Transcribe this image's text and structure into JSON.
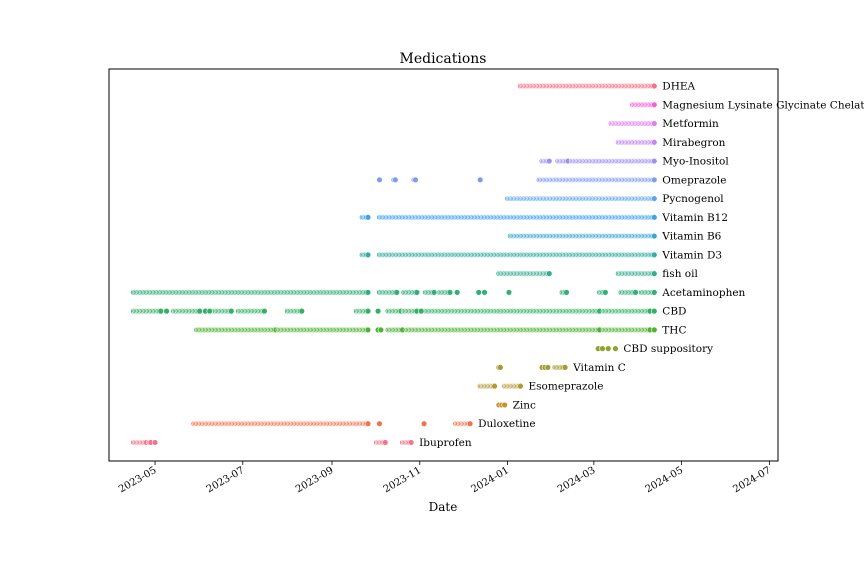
{
  "chart_data": {
    "type": "scatter",
    "title": "Medications",
    "xlabel": "Date",
    "ylabel": "",
    "x_axis": "date",
    "xlim": [
      "2023-03-30",
      "2024-07-07"
    ],
    "xtick_labels": [
      "2023-05",
      "2023-07",
      "2023-09",
      "2023-11",
      "2024-01",
      "2024-03",
      "2024-05",
      "2024-07"
    ],
    "xtick_dates": [
      "2023-05-01",
      "2023-07-01",
      "2023-09-01",
      "2023-11-01",
      "2024-01-01",
      "2024-03-01",
      "2024-05-01",
      "2024-07-01"
    ],
    "series": [
      {
        "name": "DHEA",
        "color": "#f77189",
        "ranges": [
          [
            "2024-01-10",
            "2024-04-12"
          ]
        ]
      },
      {
        "name": "Magnesium Lysinate Glycinate Chelat",
        "color": "#f564d4",
        "ranges": [
          [
            "2024-03-28",
            "2024-04-12"
          ]
        ]
      },
      {
        "name": "Metformin",
        "color": "#e27ef0",
        "ranges": [
          [
            "2024-03-13",
            "2024-04-12"
          ]
        ]
      },
      {
        "name": "Mirabegron",
        "color": "#c285f4",
        "ranges": [
          [
            "2024-03-18",
            "2024-04-12"
          ]
        ]
      },
      {
        "name": "Myo-Inositol",
        "color": "#a18ef4",
        "ranges": [
          [
            "2024-01-25",
            "2024-01-30"
          ],
          [
            "2024-02-05",
            "2024-02-12"
          ],
          [
            "2024-02-15",
            "2024-04-12"
          ]
        ]
      },
      {
        "name": "Omeprazole",
        "color": "#7d9cf0",
        "points": [
          "2023-10-04",
          "2023-10-14",
          "2023-10-15",
          "2023-10-28",
          "2023-10-29",
          "2023-12-13"
        ],
        "ranges": [
          [
            "2024-01-23",
            "2024-04-12"
          ]
        ]
      },
      {
        "name": "Pycnogenol",
        "color": "#5aa7e8",
        "ranges": [
          [
            "2024-01-01",
            "2024-04-12"
          ]
        ]
      },
      {
        "name": "Vitamin B12",
        "color": "#3ba3ec",
        "ranges": [
          [
            "2023-09-22",
            "2023-09-26"
          ],
          [
            "2023-10-04",
            "2024-04-12"
          ]
        ]
      },
      {
        "name": "Vitamin B6",
        "color": "#39a7d0",
        "ranges": [
          [
            "2024-01-03",
            "2024-04-12"
          ]
        ]
      },
      {
        "name": "Vitamin D3",
        "color": "#36ada4",
        "ranges": [
          [
            "2023-09-22",
            "2023-09-26"
          ],
          [
            "2023-10-04",
            "2024-04-12"
          ]
        ]
      },
      {
        "name": "fish oil",
        "color": "#34ae8e",
        "ranges": [
          [
            "2023-12-26",
            "2024-01-30"
          ],
          [
            "2024-03-18",
            "2024-04-12"
          ]
        ]
      },
      {
        "name": "Acetaminophen",
        "color": "#33b07a",
        "ranges": [
          [
            "2023-04-16",
            "2023-09-26"
          ],
          [
            "2023-10-04",
            "2023-10-16"
          ],
          [
            "2023-10-21",
            "2023-10-30"
          ],
          [
            "2023-11-05",
            "2023-11-11"
          ],
          [
            "2023-11-15",
            "2023-11-22"
          ],
          [
            "2024-02-08",
            "2024-02-11"
          ],
          [
            "2024-03-05",
            "2024-03-09"
          ],
          [
            "2024-03-20",
            "2024-03-30"
          ],
          [
            "2024-04-03",
            "2024-04-12"
          ]
        ],
        "points": [
          "2023-11-27",
          "2023-12-12",
          "2023-12-16",
          "2024-01-02"
        ]
      },
      {
        "name": "CBD",
        "color": "#32b166",
        "ranges": [
          [
            "2023-04-16",
            "2023-05-05"
          ],
          [
            "2023-05-14",
            "2023-06-01"
          ],
          [
            "2023-06-11",
            "2023-06-23"
          ],
          [
            "2023-06-28",
            "2023-07-16"
          ],
          [
            "2023-08-01",
            "2023-08-11"
          ],
          [
            "2023-09-18",
            "2023-09-26"
          ],
          [
            "2023-10-10",
            "2023-10-19"
          ],
          [
            "2023-10-21",
            "2023-10-30"
          ],
          [
            "2023-11-05",
            "2024-03-05"
          ],
          [
            "2024-03-08",
            "2024-04-09"
          ]
        ],
        "points": [
          "2023-05-09",
          "2023-06-05",
          "2023-06-08",
          "2023-10-03",
          "2023-11-02",
          "2024-04-12"
        ]
      },
      {
        "name": "THC",
        "color": "#4fb432",
        "ranges": [
          [
            "2023-05-30",
            "2023-07-24"
          ],
          [
            "2023-07-26",
            "2023-09-26"
          ],
          [
            "2023-10-10",
            "2023-10-20"
          ],
          [
            "2023-10-23",
            "2024-03-05"
          ],
          [
            "2024-03-08",
            "2024-04-09"
          ]
        ],
        "points": [
          "2023-10-03",
          "2023-10-05",
          "2024-04-12"
        ]
      },
      {
        "name": "CBD suppository",
        "color": "#8ea332",
        "points": [
          "2024-03-04",
          "2024-03-07",
          "2024-03-11",
          "2024-03-16"
        ]
      },
      {
        "name": "Vitamin C",
        "color": "#a39c31",
        "points": [
          "2023-12-26",
          "2023-12-27",
          "2024-01-25",
          "2024-01-27",
          "2024-01-29"
        ],
        "ranges": [
          [
            "2024-02-03",
            "2024-02-10"
          ]
        ]
      },
      {
        "name": "Esomeprazole",
        "color": "#b39930",
        "ranges": [
          [
            "2023-12-13",
            "2023-12-23"
          ],
          [
            "2023-12-30",
            "2024-01-10"
          ]
        ]
      },
      {
        "name": "Zinc",
        "color": "#c4932f",
        "points": [
          "2023-12-26",
          "2023-12-28",
          "2023-12-30"
        ]
      },
      {
        "name": "Duloxetine",
        "color": "#f5714e",
        "ranges": [
          [
            "2023-05-28",
            "2023-09-26"
          ],
          [
            "2023-11-26",
            "2023-12-06"
          ]
        ],
        "points": [
          "2023-10-04",
          "2023-11-04"
        ]
      },
      {
        "name": "Ibuprofen",
        "color": "#f77189",
        "ranges": [
          [
            "2023-04-16",
            "2023-04-25"
          ],
          [
            "2023-10-02",
            "2023-10-08"
          ],
          [
            "2023-10-20",
            "2023-10-26"
          ]
        ],
        "points": [
          "2023-04-27",
          "2023-04-28",
          "2023-05-01"
        ]
      }
    ]
  }
}
